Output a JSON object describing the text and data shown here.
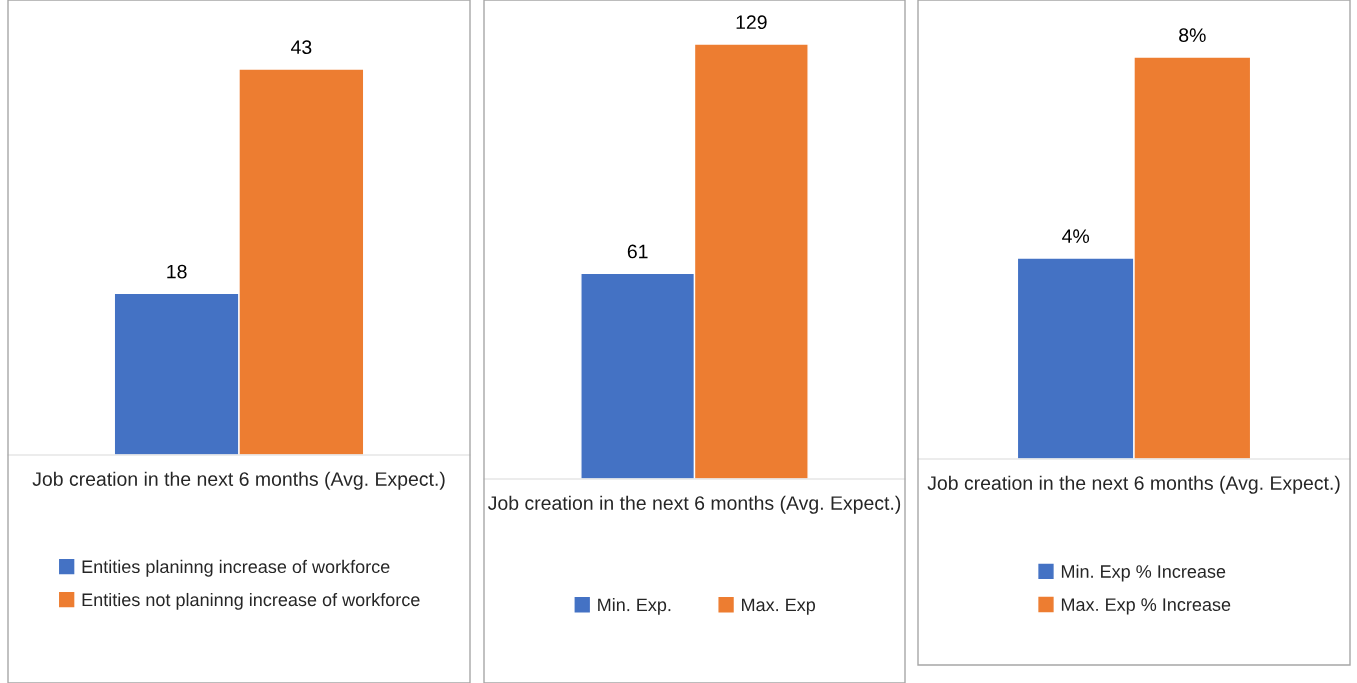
{
  "chart_data": [
    {
      "type": "bar",
      "xlabel": "Job creation in the next 6 months (Avg. Expect.)",
      "categories": [
        null
      ],
      "data_labels": true,
      "legend": "bottom",
      "series": [
        {
          "name": "Entities planinng increase of workforce",
          "color": "#4472c4",
          "values": [
            18
          ]
        },
        {
          "name": "Entities not planinng increase of workforce",
          "color": "#ed7d31",
          "values": [
            43
          ]
        }
      ]
    },
    {
      "type": "bar",
      "xlabel": "Job creation in the next 6 months (Avg. Expect.)",
      "categories": [
        null
      ],
      "data_labels": true,
      "legend": "bottom",
      "series": [
        {
          "name": "Min. Exp.",
          "color": "#4472c4",
          "values": [
            61
          ]
        },
        {
          "name": "Max. Exp",
          "color": "#ed7d31",
          "values": [
            129
          ]
        }
      ]
    },
    {
      "type": "bar",
      "xlabel": "Job creation in the next 6 months (Avg. Expect.)",
      "categories": [
        null
      ],
      "legend": "bottom",
      "series": [
        {
          "name": "Min. Exp % Increase",
          "color": "#4472c4",
          "values": [
            4
          ],
          "value_labels": [
            "4%"
          ]
        },
        {
          "name": "Max. Exp % Increase",
          "color": "#ed7d31",
          "values": [
            8
          ],
          "value_labels": [
            "8%"
          ]
        }
      ]
    }
  ]
}
